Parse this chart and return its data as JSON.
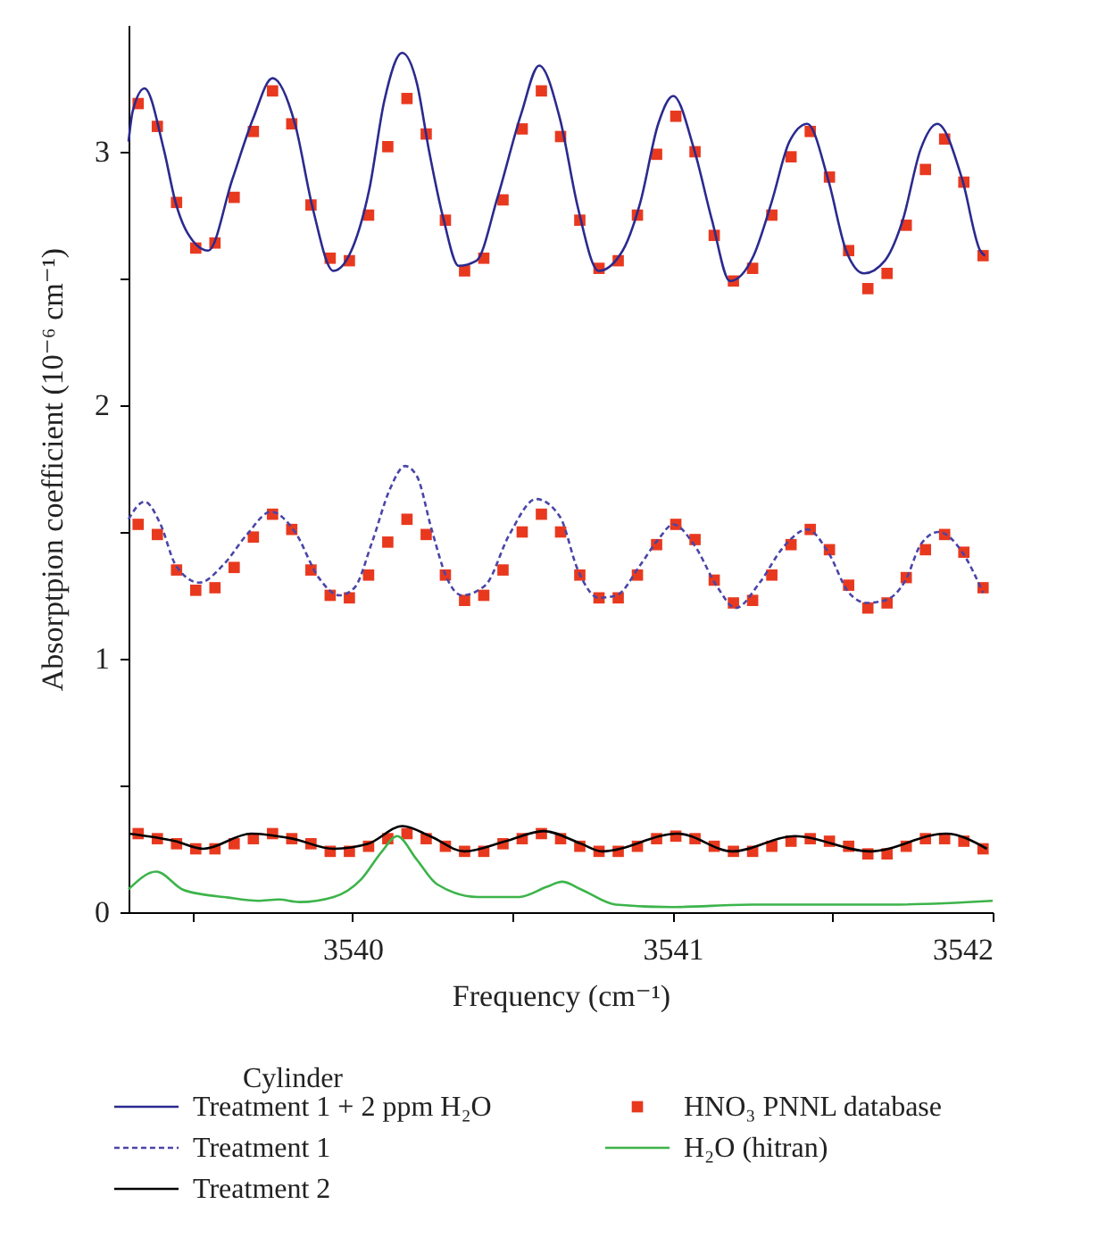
{
  "chart_data": {
    "type": "line",
    "xlabel": "Frequency (cm⁻¹)",
    "ylabel": "Absorptpion coefficient (10⁻⁶ cm⁻¹)",
    "legend_title": "Cylinder",
    "legend": "bottom",
    "grid": false,
    "xlim": [
      3539.3,
      3542
    ],
    "ylim": [
      0,
      3.5
    ],
    "xticks": [
      {
        "value": 3539.5,
        "label": null
      },
      3540,
      {
        "value": 3540.5,
        "label": null
      },
      3541,
      {
        "value": 3541.5,
        "label": null
      },
      3542
    ],
    "yticks": [
      0,
      {
        "value": 0.5,
        "label": null
      },
      1,
      {
        "value": 1.5,
        "label": null
      },
      2,
      {
        "value": 2.5,
        "label": null
      },
      3
    ],
    "series": [
      {
        "name": "Treatment 1 + 2 ppm H₂O",
        "type": "line",
        "color": "#2b2a8f",
        "line_style": "solid",
        "x": [
          3539.3,
          3539.313,
          3539.35,
          3539.41,
          3539.447,
          3539.484,
          3539.549,
          3539.624,
          3539.689,
          3539.75,
          3539.82,
          3539.875,
          3539.94,
          3540.006,
          3540.052,
          3540.099,
          3540.155,
          3540.201,
          3540.238,
          3540.285,
          3540.331,
          3540.387,
          3540.453,
          3540.527,
          3540.583,
          3540.648,
          3540.704,
          3540.769,
          3540.844,
          3540.899,
          3540.955,
          3541.002,
          3541.067,
          3541.123,
          3541.179,
          3541.253,
          3541.309,
          3541.365,
          3541.421,
          3541.486,
          3541.542,
          3541.598,
          3541.663,
          3541.719,
          3541.775,
          3541.827,
          3541.905,
          3541.961,
          3541.976
        ],
        "values": [
          3.04,
          3.16,
          3.25,
          3.01,
          2.8,
          2.68,
          2.61,
          2.89,
          3.13,
          3.29,
          3.11,
          2.78,
          2.53,
          2.64,
          2.85,
          3.2,
          3.39,
          3.27,
          3.01,
          2.73,
          2.55,
          2.57,
          2.82,
          3.15,
          3.34,
          3.13,
          2.78,
          2.53,
          2.61,
          2.8,
          3.11,
          3.22,
          3.01,
          2.73,
          2.49,
          2.59,
          2.8,
          3.04,
          3.11,
          2.89,
          2.61,
          2.52,
          2.57,
          2.73,
          3.01,
          3.11,
          2.89,
          2.61,
          2.59
        ]
      },
      {
        "name": "Treatment 1",
        "type": "line",
        "color": "#4a45a8",
        "line_style": "dashed",
        "x": [
          3539.3,
          3539.35,
          3539.4,
          3539.447,
          3539.521,
          3539.596,
          3539.67,
          3539.745,
          3539.82,
          3539.894,
          3539.959,
          3540.006,
          3540.061,
          3540.117,
          3540.164,
          3540.201,
          3540.247,
          3540.294,
          3540.341,
          3540.415,
          3540.49,
          3540.574,
          3540.648,
          3540.704,
          3540.769,
          3540.825,
          3540.899,
          3540.955,
          3541.002,
          3541.067,
          3541.141,
          3541.197,
          3541.272,
          3541.346,
          3541.421,
          3541.486,
          3541.551,
          3541.607,
          3541.663,
          3541.728,
          3541.775,
          3541.831,
          3541.905,
          3541.97
        ],
        "values": [
          1.55,
          1.62,
          1.53,
          1.37,
          1.3,
          1.37,
          1.49,
          1.58,
          1.5,
          1.32,
          1.25,
          1.28,
          1.46,
          1.67,
          1.76,
          1.72,
          1.51,
          1.32,
          1.25,
          1.29,
          1.49,
          1.63,
          1.56,
          1.35,
          1.24,
          1.25,
          1.37,
          1.47,
          1.53,
          1.45,
          1.28,
          1.2,
          1.3,
          1.44,
          1.51,
          1.42,
          1.26,
          1.22,
          1.23,
          1.31,
          1.45,
          1.5,
          1.42,
          1.26
        ]
      },
      {
        "name": "Treatment 2",
        "type": "line",
        "color": "#000000",
        "line_style": "solid",
        "x": [
          3539.3,
          3539.447,
          3539.533,
          3539.683,
          3539.812,
          3539.941,
          3540.049,
          3540.156,
          3540.242,
          3540.349,
          3540.478,
          3540.597,
          3540.714,
          3540.779,
          3541.016,
          3541.187,
          3541.381,
          3541.617,
          3541.854,
          3541.982
        ],
        "values": [
          0.31,
          0.28,
          0.25,
          0.31,
          0.29,
          0.25,
          0.27,
          0.34,
          0.3,
          0.24,
          0.28,
          0.32,
          0.27,
          0.24,
          0.31,
          0.24,
          0.3,
          0.24,
          0.31,
          0.25
        ]
      },
      {
        "name": "HNO₃ PNNL database",
        "type": "scatter",
        "color": "#e8391f",
        "marker": "square",
        "x": [
          3539.33,
          3539.39,
          3539.45,
          3539.51,
          3539.57,
          3539.63,
          3539.69,
          3539.75,
          3539.81,
          3539.87,
          3539.93,
          3539.99,
          3540.05,
          3540.11,
          3540.17,
          3540.23,
          3540.29,
          3540.35,
          3540.41,
          3540.47,
          3540.53,
          3540.59,
          3540.65,
          3540.71,
          3540.77,
          3540.83,
          3540.89,
          3540.95,
          3541.01,
          3541.07,
          3541.13,
          3541.19,
          3541.25,
          3541.31,
          3541.37,
          3541.43,
          3541.49,
          3541.55,
          3541.61,
          3541.67,
          3541.73,
          3541.79,
          3541.85,
          3541.91,
          3541.97,
          3539.33,
          3539.39,
          3539.45,
          3539.51,
          3539.57,
          3539.63,
          3539.69,
          3539.75,
          3539.81,
          3539.87,
          3539.93,
          3539.99,
          3540.05,
          3540.11,
          3540.17,
          3540.23,
          3540.29,
          3540.35,
          3540.41,
          3540.47,
          3540.53,
          3540.59,
          3540.65,
          3540.71,
          3540.77,
          3540.83,
          3540.89,
          3540.95,
          3541.01,
          3541.07,
          3541.13,
          3541.19,
          3541.25,
          3541.31,
          3541.37,
          3541.43,
          3541.49,
          3541.55,
          3541.61,
          3541.67,
          3541.73,
          3541.79,
          3541.85,
          3541.91,
          3541.97,
          3539.33,
          3539.39,
          3539.45,
          3539.51,
          3539.57,
          3539.63,
          3539.69,
          3539.75,
          3539.81,
          3539.87,
          3539.93,
          3539.99,
          3540.05,
          3540.11,
          3540.17,
          3540.23,
          3540.29,
          3540.35,
          3540.41,
          3540.47,
          3540.53,
          3540.59,
          3540.65,
          3540.71,
          3540.77,
          3540.83,
          3540.89,
          3540.95,
          3541.01,
          3541.07,
          3541.13,
          3541.19,
          3541.25,
          3541.31,
          3541.37,
          3541.43,
          3541.49,
          3541.55,
          3541.61,
          3541.67,
          3541.73,
          3541.79,
          3541.85,
          3541.91,
          3541.97
        ],
        "values": [
          3.19,
          3.1,
          2.8,
          2.62,
          2.64,
          2.82,
          3.08,
          3.24,
          3.11,
          2.79,
          2.58,
          2.57,
          2.75,
          3.02,
          3.21,
          3.07,
          2.73,
          2.53,
          2.58,
          2.81,
          3.09,
          3.24,
          3.06,
          2.73,
          2.54,
          2.57,
          2.75,
          2.99,
          3.14,
          3.0,
          2.67,
          2.49,
          2.54,
          2.75,
          2.98,
          3.08,
          2.9,
          2.61,
          2.46,
          2.52,
          2.71,
          2.93,
          3.05,
          2.88,
          2.59,
          1.53,
          1.49,
          1.35,
          1.27,
          1.28,
          1.36,
          1.48,
          1.57,
          1.51,
          1.35,
          1.25,
          1.24,
          1.33,
          1.46,
          1.55,
          1.49,
          1.33,
          1.23,
          1.25,
          1.35,
          1.5,
          1.57,
          1.5,
          1.33,
          1.24,
          1.24,
          1.33,
          1.45,
          1.53,
          1.47,
          1.31,
          1.22,
          1.23,
          1.33,
          1.45,
          1.51,
          1.43,
          1.29,
          1.2,
          1.22,
          1.32,
          1.43,
          1.49,
          1.42,
          1.28,
          0.31,
          0.29,
          0.27,
          0.25,
          0.25,
          0.27,
          0.29,
          0.31,
          0.29,
          0.27,
          0.24,
          0.24,
          0.26,
          0.29,
          0.31,
          0.29,
          0.26,
          0.24,
          0.24,
          0.27,
          0.29,
          0.31,
          0.29,
          0.26,
          0.24,
          0.24,
          0.26,
          0.29,
          0.3,
          0.29,
          0.26,
          0.24,
          0.24,
          0.26,
          0.28,
          0.29,
          0.28,
          0.26,
          0.23,
          0.23,
          0.26,
          0.29,
          0.29,
          0.28,
          0.25
        ]
      },
      {
        "name": "H₂O (hitran)",
        "type": "line",
        "color": "#3cb44a",
        "line_style": "solid",
        "x": [
          3539.3,
          3539.387,
          3539.468,
          3539.533,
          3539.597,
          3539.705,
          3539.769,
          3539.834,
          3539.941,
          3540.027,
          3540.092,
          3540.139,
          3540.199,
          3540.264,
          3540.392,
          3540.521,
          3540.607,
          3540.655,
          3540.714,
          3540.822,
          3540.994,
          3541.252,
          3541.682,
          3542.0
        ],
        "values": [
          0.09,
          0.16,
          0.09,
          0.07,
          0.06,
          0.045,
          0.05,
          0.04,
          0.06,
          0.13,
          0.24,
          0.3,
          0.21,
          0.11,
          0.06,
          0.06,
          0.1,
          0.12,
          0.09,
          0.03,
          0.02,
          0.03,
          0.03,
          0.045
        ]
      }
    ]
  }
}
